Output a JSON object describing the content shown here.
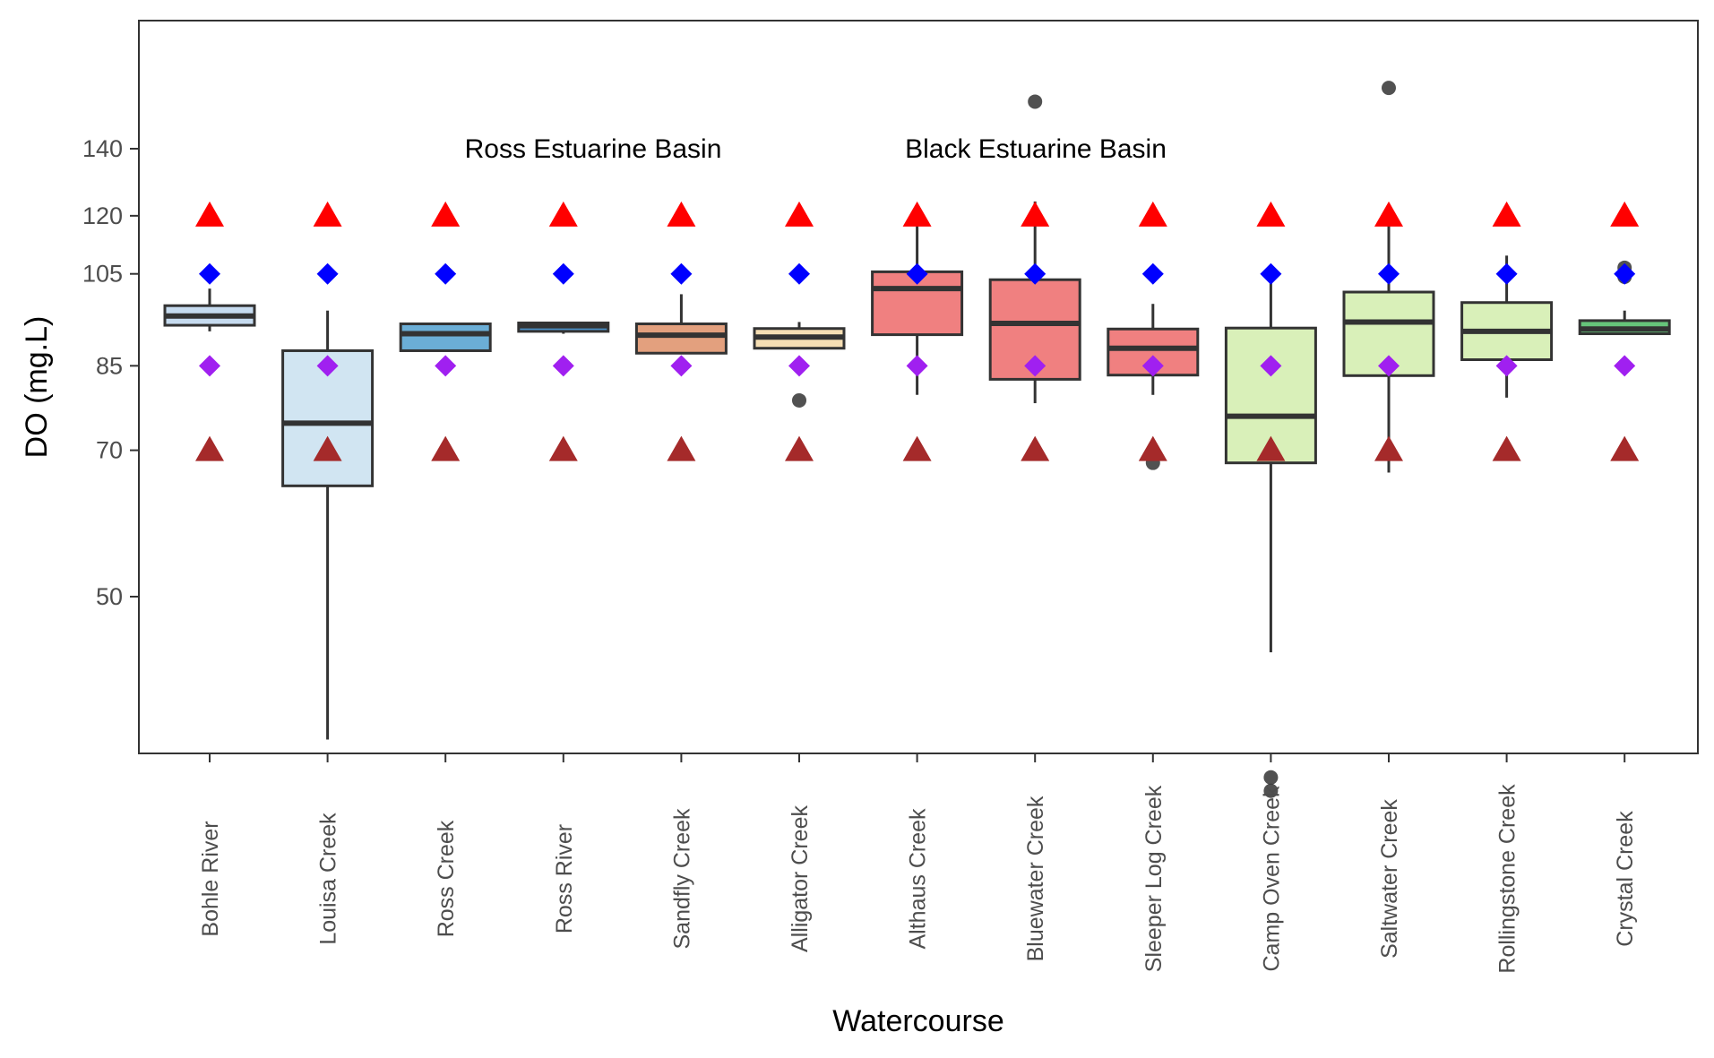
{
  "chart_data": {
    "type": "box",
    "xlabel": "Watercourse",
    "ylabel": "DO (mg.L)",
    "ylim": [
      25,
      160
    ],
    "y_scale": "log",
    "y_ticks": [
      50,
      70,
      85,
      105,
      120,
      140
    ],
    "y_tick_labels": [
      "50",
      "70",
      "85",
      "105",
      "120",
      "140"
    ],
    "grid": false,
    "legend": "none",
    "annotations": [
      {
        "text": "Ross Estuarine Basin",
        "x": "Ross River",
        "y": 140
      },
      {
        "text": "Black Estuarine Basin",
        "x": "Bluewater Creek",
        "y": 140
      }
    ],
    "reference_markers": [
      {
        "shape": "triangle",
        "color": "#ff0000",
        "value": 120
      },
      {
        "shape": "diamond",
        "color": "#0000ff",
        "value": 105
      },
      {
        "shape": "diamond",
        "color": "#a020f0",
        "value": 85
      },
      {
        "shape": "triangle",
        "color": "#a52a2a",
        "value": 70
      }
    ],
    "categories": [
      "Bohle River",
      "Louisa Creek",
      "Ross Creek",
      "Ross River",
      "Sandfly Creek",
      "Alligator Creek",
      "Althaus Creek",
      "Bluewater Creek",
      "Sleeper Log Creek",
      "Camp Oven Creek",
      "Saltwater Creek",
      "Rollingstone Creek",
      "Crystal Creek"
    ],
    "boxes": [
      {
        "name": "Bohle River",
        "color": "#c6dbef",
        "whisker_low": 92,
        "q1": 93.3,
        "median": 95.3,
        "q3": 97.6,
        "whisker_high": 101.5,
        "outliers": []
      },
      {
        "name": "Louisa Creek",
        "color": "#d1e5f2",
        "whisker_low": 36,
        "q1": 64.5,
        "median": 74.5,
        "q3": 88,
        "whisker_high": 96.5,
        "outliers": []
      },
      {
        "name": "Ross Creek",
        "color": "#6baed6",
        "whisker_low": 88,
        "q1": 88,
        "median": 91.5,
        "q3": 93.6,
        "whisker_high": 93.6,
        "outliers": []
      },
      {
        "name": "Ross River",
        "color": "#4a90c8",
        "whisker_low": 91.5,
        "q1": 92,
        "median": 93.2,
        "q3": 93.8,
        "whisker_high": 93.8,
        "outliers": []
      },
      {
        "name": "Sandfly Creek",
        "color": "#e3a07e",
        "whisker_low": 87.5,
        "q1": 87.5,
        "median": 91.2,
        "q3": 93.6,
        "whisker_high": 100.2,
        "outliers": []
      },
      {
        "name": "Alligator Creek",
        "color": "#f5deb3",
        "whisker_low": 88.5,
        "q1": 88.5,
        "median": 90.8,
        "q3": 92.6,
        "whisker_high": 94,
        "outliers": [
          78.5
        ]
      },
      {
        "name": "Althaus Creek",
        "color": "#f08080",
        "whisker_low": 79.5,
        "q1": 91.3,
        "median": 101.5,
        "q3": 105.5,
        "whisker_high": 118.5,
        "outliers": []
      },
      {
        "name": "Bluewater Creek",
        "color": "#f08080",
        "whisker_low": 78,
        "q1": 82.4,
        "median": 93.7,
        "q3": 103.6,
        "whisker_high": 124,
        "outliers": [
          156
        ]
      },
      {
        "name": "Sleeper Log Creek",
        "color": "#f08080",
        "whisker_low": 79.5,
        "q1": 83.2,
        "median": 88.5,
        "q3": 92.5,
        "whisker_high": 98,
        "outliers": [
          68
        ]
      },
      {
        "name": "Camp Oven Creek",
        "color": "#d9f0b9",
        "whisker_low": 44,
        "q1": 68,
        "median": 75.7,
        "q3": 92.7,
        "whisker_high": 105,
        "outliers": [
          33,
          32
        ]
      },
      {
        "name": "Saltwater Creek",
        "color": "#d9f0b9",
        "whisker_low": 66.5,
        "q1": 83.1,
        "median": 94,
        "q3": 100.7,
        "whisker_high": 118.5,
        "outliers": [
          161
        ]
      },
      {
        "name": "Rollingstone Creek",
        "color": "#d9f0b9",
        "whisker_low": 79,
        "q1": 86.2,
        "median": 92,
        "q3": 98.3,
        "whisker_high": 109.5,
        "outliers": []
      },
      {
        "name": "Crystal Creek",
        "color": "#66c47a",
        "whisker_low": 91.5,
        "q1": 91.5,
        "median": 92.5,
        "q3": 94.3,
        "whisker_high": 96.5,
        "outliers": [
          106.5,
          104.3
        ]
      }
    ]
  }
}
